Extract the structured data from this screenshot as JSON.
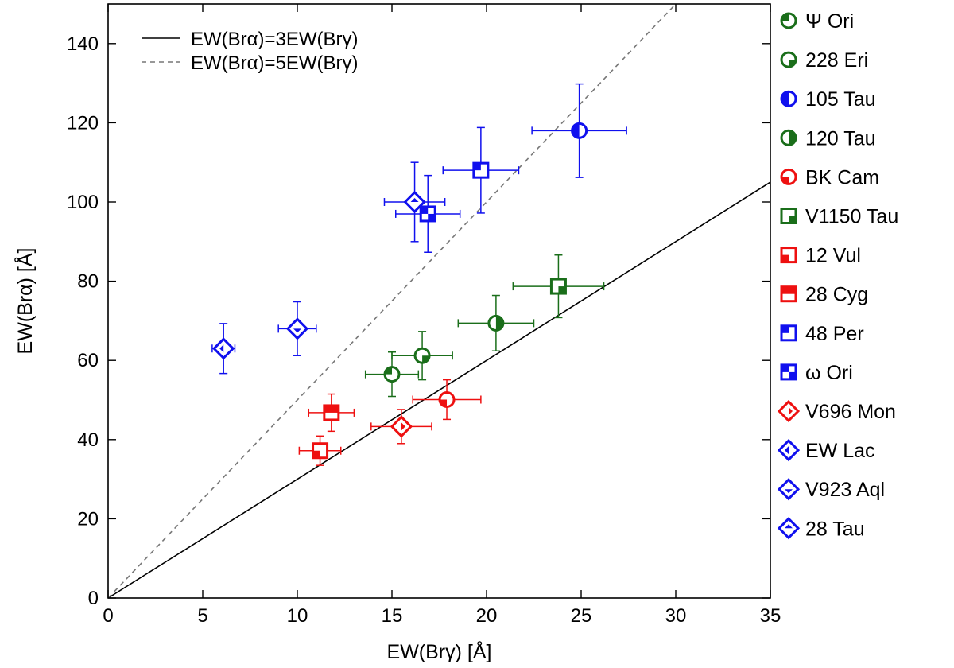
{
  "chart_data": {
    "type": "scatter",
    "xlabel": "EW(Brγ) [Å]",
    "ylabel": "EW(Brα) [Å]",
    "xlim": [
      0,
      35
    ],
    "ylim": [
      0,
      150
    ],
    "xticks": [
      0,
      5,
      10,
      15,
      20,
      25,
      30,
      35
    ],
    "yticks": [
      0,
      20,
      40,
      60,
      80,
      100,
      120,
      140
    ],
    "grid": false,
    "colors": {
      "green": "#1a6e1a",
      "blue": "#1010ee",
      "red": "#ee1010",
      "line": "#000000",
      "dash": "#777777"
    },
    "lines": [
      {
        "label": "EW(Brα)=3EW(Brγ)",
        "slope": 3,
        "style": "solid"
      },
      {
        "label": "EW(Brα)=5EW(Brγ)",
        "slope": 5,
        "style": "dashed"
      }
    ],
    "series": [
      {
        "name": "Ψ Ori",
        "color": "green",
        "marker": "circle",
        "fill": "q-tl",
        "x": 15.0,
        "xerr": 1.4,
        "y": 56.5,
        "yerr": 5.6
      },
      {
        "name": "228 Eri",
        "color": "green",
        "marker": "circle",
        "fill": "q-br",
        "x": 16.6,
        "xerr": 1.6,
        "y": 61.2,
        "yerr": 6.1
      },
      {
        "name": "105 Tau",
        "color": "blue",
        "marker": "circle",
        "fill": "half-l",
        "x": 24.9,
        "xerr": 2.5,
        "y": 118.0,
        "yerr": 11.8
      },
      {
        "name": "120 Tau",
        "color": "green",
        "marker": "circle",
        "fill": "half-r",
        "x": 20.5,
        "xerr": 2.0,
        "y": 69.4,
        "yerr": 7.0
      },
      {
        "name": "BK Cam",
        "color": "red",
        "marker": "circle",
        "fill": "q-bl",
        "x": 17.9,
        "xerr": 1.8,
        "y": 50.1,
        "yerr": 5.0
      },
      {
        "name": "V1150 Tau",
        "color": "green",
        "marker": "square",
        "fill": "q-br",
        "x": 23.8,
        "xerr": 2.4,
        "y": 78.7,
        "yerr": 7.9
      },
      {
        "name": "12 Vul",
        "color": "red",
        "marker": "square",
        "fill": "q-bl",
        "x": 11.2,
        "xerr": 1.1,
        "y": 37.2,
        "yerr": 3.7
      },
      {
        "name": "28 Cyg",
        "color": "red",
        "marker": "square",
        "fill": "half-t",
        "x": 11.8,
        "xerr": 1.2,
        "y": 46.8,
        "yerr": 4.7
      },
      {
        "name": "48 Per",
        "color": "blue",
        "marker": "square",
        "fill": "q-tl",
        "x": 19.7,
        "xerr": 2.0,
        "y": 108.0,
        "yerr": 10.8
      },
      {
        "name": "ω Ori",
        "color": "blue",
        "marker": "square",
        "fill": "q-tl-br",
        "x": 16.9,
        "xerr": 1.7,
        "y": 97.0,
        "yerr": 9.7
      },
      {
        "name": "V696 Mon",
        "color": "red",
        "marker": "diamond",
        "fill": "d-r",
        "x": 15.5,
        "xerr": 1.6,
        "y": 43.3,
        "yerr": 4.3
      },
      {
        "name": "EW Lac",
        "color": "blue",
        "marker": "diamond",
        "fill": "d-l",
        "x": 6.1,
        "xerr": 0.6,
        "y": 63.0,
        "yerr": 6.3
      },
      {
        "name": "V923 Aql",
        "color": "blue",
        "marker": "diamond",
        "fill": "d-b",
        "x": 10.0,
        "xerr": 1.0,
        "y": 68.0,
        "yerr": 6.8
      },
      {
        "name": "28 Tau",
        "color": "blue",
        "marker": "diamond",
        "fill": "d-t",
        "x": 16.2,
        "xerr": 1.6,
        "y": 100.0,
        "yerr": 10.0
      }
    ]
  }
}
